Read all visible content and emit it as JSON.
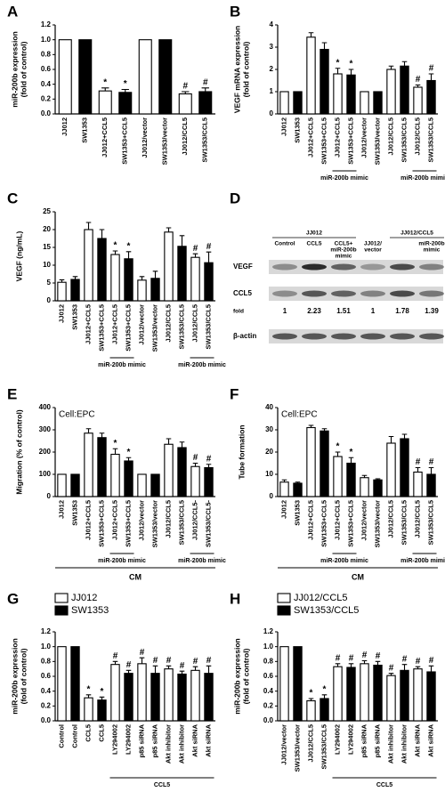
{
  "chart_data": [
    {
      "type": "bar",
      "panel": "A",
      "ylabel": [
        "miR-200b expression",
        "(fold of control)"
      ],
      "categories": [
        "JJ012",
        "SW1353",
        "JJ012+CCL5",
        "SW1353+CCL5",
        "JJ012/vector",
        "SW1353/vector",
        "JJ012/CCL5",
        "SW1353/CCL5"
      ],
      "values": [
        1,
        1,
        0.31,
        0.29,
        1,
        1,
        0.27,
        0.3
      ],
      "errors": [
        null,
        null,
        0.04,
        0.04,
        null,
        null,
        0.03,
        0.05
      ],
      "markers": [
        null,
        null,
        "*",
        "*",
        null,
        null,
        "#",
        "#"
      ],
      "colors": [
        "#ffffff",
        "#000000",
        "#ffffff",
        "#000000",
        "#ffffff",
        "#000000",
        "#ffffff",
        "#000000"
      ],
      "ylim": [
        0,
        1.2
      ],
      "yticks": [
        {
          "value": 0,
          "label": "0.0"
        },
        0.2,
        0.4,
        0.6,
        0.8,
        {
          "value": 1,
          "label": "1.0"
        },
        1.2
      ]
    },
    {
      "type": "bar",
      "panel": "B",
      "ylabel": [
        "VEGF mRNA expression",
        "(fold of control)"
      ],
      "categories": [
        "JJ012",
        "SW1353",
        "JJ012+CCL5",
        "SW1353+CCL5",
        "JJ012+CCL5",
        "SW1353+CCL5",
        "JJ012/vector",
        "SW1353/vector",
        "JJ012/CCL5",
        "SW1353/CCL5",
        "JJ012/CCL5",
        "SW1353/CCL5"
      ],
      "values": [
        1,
        1,
        3.45,
        2.9,
        1.8,
        1.75,
        1,
        1,
        2.0,
        2.15,
        1.2,
        1.5
      ],
      "errors": [
        null,
        null,
        0.2,
        0.3,
        0.25,
        0.25,
        null,
        null,
        0.15,
        0.2,
        0.1,
        0.3
      ],
      "markers": [
        null,
        null,
        null,
        null,
        "*",
        "*",
        null,
        null,
        null,
        null,
        "#",
        "#"
      ],
      "colors": [
        "#ffffff",
        "#000000",
        "#ffffff",
        "#000000",
        "#ffffff",
        "#000000",
        "#ffffff",
        "#000000",
        "#ffffff",
        "#000000",
        "#ffffff",
        "#000000"
      ],
      "brackets": [
        {
          "text": "miR-200b mimic",
          "first": 4,
          "last": 5
        },
        {
          "text": "miR-200b mimic",
          "first": 10,
          "last": 11
        }
      ],
      "ylim": [
        0,
        4
      ],
      "yticks": [
        0,
        1,
        2,
        3,
        4
      ]
    },
    {
      "type": "bar",
      "panel": "C",
      "ylabel": [
        "VEGF (ng/mL)"
      ],
      "categories": [
        "JJ012",
        "SW1353",
        "JJ012+CCL5",
        "SW1353+CCL5",
        "JJ012+CCL5",
        "SW1353+CCL5",
        "JJ012/vector",
        "SW1353/vector",
        "JJ012/CCL5",
        "SW1353/CCL5",
        "JJ012/CCL5",
        "SW1353/CCL5"
      ],
      "values": [
        5.2,
        6,
        20,
        17.5,
        13,
        11.8,
        5.8,
        6.3,
        19.3,
        15.3,
        12.2,
        10.7
      ],
      "errors": [
        0.7,
        0.8,
        2,
        2.5,
        1,
        2,
        1,
        2,
        1.2,
        3,
        1,
        3
      ],
      "markers": [
        null,
        null,
        null,
        null,
        "*",
        "*",
        null,
        null,
        null,
        null,
        "#",
        "#"
      ],
      "colors": [
        "#ffffff",
        "#000000",
        "#ffffff",
        "#000000",
        "#ffffff",
        "#000000",
        "#ffffff",
        "#000000",
        "#ffffff",
        "#000000",
        "#ffffff",
        "#000000"
      ],
      "brackets": [
        {
          "text": "miR-200b mimic",
          "first": 4,
          "last": 5
        },
        {
          "text": "miR-200b mimic",
          "first": 10,
          "last": 11
        }
      ],
      "ylim": [
        0,
        25
      ],
      "yticks": [
        0,
        5,
        10,
        15,
        20,
        25
      ]
    },
    {
      "type": "blot",
      "panel": "D",
      "groups": [
        {
          "name": "JJ012",
          "first": 0,
          "last": 2
        },
        {
          "name": "JJ012/CCL5",
          "first": 4,
          "last": 5
        }
      ],
      "columns": [
        [
          "Control"
        ],
        [
          "CCL5"
        ],
        [
          "CCL5+",
          "miR-200b",
          "mimic"
        ],
        [
          "JJ012/",
          "vector"
        ],
        null,
        [
          "miR-200b",
          "mimic"
        ]
      ],
      "rows": [
        "VEGF",
        "CCL5",
        "β-actin"
      ],
      "fold_label": "fold",
      "fold": [
        1,
        2.23,
        1.51,
        1,
        1.78,
        1.39
      ]
    },
    {
      "type": "bar",
      "panel": "E",
      "ylabel": [
        "Migration (% of control)"
      ],
      "note": "Cell:EPC",
      "categories": [
        "JJ012",
        "SW1353",
        "JJ012+CCL5",
        "SW1353+CCL5",
        "JJ012+CCL5",
        "SW1353+CCL5",
        "JJ012/vector",
        "SW1353/vector",
        "JJ012/CCL5",
        "SW1353/CCL5",
        "JJ012/CCL5-",
        "SW1353/CCL5-"
      ],
      "values": [
        100,
        100,
        285,
        265,
        190,
        160,
        100,
        100,
        235,
        220,
        135,
        130
      ],
      "errors": [
        null,
        null,
        20,
        20,
        25,
        15,
        null,
        null,
        25,
        25,
        15,
        15
      ],
      "markers": [
        null,
        null,
        null,
        null,
        "*",
        "*",
        null,
        null,
        null,
        null,
        "#",
        "#"
      ],
      "colors": [
        "#ffffff",
        "#000000",
        "#ffffff",
        "#000000",
        "#ffffff",
        "#000000",
        "#ffffff",
        "#000000",
        "#ffffff",
        "#000000",
        "#ffffff",
        "#000000"
      ],
      "brackets": [
        {
          "text": "miR-200b mimic",
          "first": 4,
          "last": 5
        },
        {
          "text": "miR-200b mimic",
          "first": 10,
          "last": 11
        }
      ],
      "footer": "CM",
      "ylim": [
        0,
        400
      ],
      "yticks": [
        0,
        100,
        200,
        300,
        400
      ]
    },
    {
      "type": "bar",
      "panel": "F",
      "ylabel": [
        "Tube formation"
      ],
      "note": "Cell:EPC",
      "categories": [
        "JJ012",
        "SW1353",
        "JJ012+CCL5",
        "SW1353+CCL5",
        "JJ012+CCL5",
        "SW1353+CCL5",
        "JJ012/vector",
        "SW1353/vector",
        "JJ012/CCL5",
        "SW1353/CCL5",
        "JJ012/CCL5",
        "SW1353/CCL5"
      ],
      "values": [
        6.5,
        6,
        31,
        29.5,
        18,
        15,
        8.5,
        7.5,
        24,
        26,
        11,
        10
      ],
      "errors": [
        1,
        0.5,
        1,
        1,
        2,
        2.5,
        1,
        0.5,
        3,
        2,
        2,
        3
      ],
      "markers": [
        null,
        null,
        null,
        null,
        "*",
        "*",
        null,
        null,
        null,
        null,
        "#",
        "#"
      ],
      "colors": [
        "#ffffff",
        "#000000",
        "#ffffff",
        "#000000",
        "#ffffff",
        "#000000",
        "#ffffff",
        "#000000",
        "#ffffff",
        "#000000",
        "#ffffff",
        "#000000"
      ],
      "brackets": [
        {
          "text": "miR-200b mimic",
          "first": 4,
          "last": 5
        },
        {
          "text": "miR-200b mimic",
          "first": 10,
          "last": 11
        }
      ],
      "footer": "CM",
      "ylim": [
        0,
        40
      ],
      "yticks": [
        0,
        10,
        20,
        30,
        40
      ]
    },
    {
      "type": "bar",
      "panel": "G",
      "ylabel": [
        "miR-200b expression",
        "(fold of control)"
      ],
      "legend": [
        {
          "name": "JJ012",
          "color": "#ffffff"
        },
        {
          "name": "SW1353",
          "color": "#000000"
        }
      ],
      "categories": [
        "Control",
        "Control",
        "CCL5",
        "CCL5",
        "LY294002",
        "LY294002",
        "p85 siRNA",
        "p85 siRNA",
        "Akt inhibitor",
        "Akt inhibitor",
        "Akt siRNA",
        "Akt siRNA"
      ],
      "values": [
        1,
        1,
        0.31,
        0.28,
        0.76,
        0.64,
        0.77,
        0.64,
        0.7,
        0.63,
        0.68,
        0.64
      ],
      "errors": [
        null,
        null,
        0.04,
        0.04,
        0.04,
        0.04,
        0.08,
        0.1,
        0.04,
        0.04,
        0.05,
        0.1
      ],
      "markers": [
        null,
        null,
        "*",
        "*",
        "#",
        "#",
        "#",
        "#",
        "#",
        "#",
        "#",
        "#"
      ],
      "colors": [
        "#ffffff",
        "#000000",
        "#ffffff",
        "#000000",
        "#ffffff",
        "#000000",
        "#ffffff",
        "#000000",
        "#ffffff",
        "#000000",
        "#ffffff",
        "#000000"
      ],
      "brackets": [
        {
          "text": "CCL5",
          "first": 4,
          "last": 11
        }
      ],
      "ylim": [
        0,
        1.2
      ],
      "yticks": [
        {
          "value": 0,
          "label": "0.0"
        },
        0.2,
        0.4,
        0.6,
        0.8,
        {
          "value": 1,
          "label": "1.0"
        },
        1.2
      ]
    },
    {
      "type": "bar",
      "panel": "H",
      "ylabel": [
        "miR-200b expression",
        "(fold of control)"
      ],
      "legend": [
        {
          "name": "JJ012/CCL5",
          "color": "#ffffff"
        },
        {
          "name": "SW1353/CCL5",
          "color": "#000000"
        }
      ],
      "categories": [
        "JJ012/vector",
        "SW1353/vector",
        "JJ012/CCL5",
        "SW1353/CCL5",
        "LY294002",
        "LY294002",
        "p85 siRNA",
        "p85 siRNA",
        "Akt inhibitor",
        "Akt inhibitor",
        "Akt siRNA",
        "Akt siRNA"
      ],
      "values": [
        1,
        1,
        0.27,
        0.3,
        0.73,
        0.72,
        0.77,
        0.75,
        0.61,
        0.68,
        0.7,
        0.66
      ],
      "errors": [
        null,
        null,
        0.03,
        0.05,
        0.04,
        0.05,
        0.04,
        0.05,
        0.03,
        0.08,
        0.03,
        0.08
      ],
      "markers": [
        null,
        null,
        "*",
        "*",
        "#",
        "#",
        "#",
        "#",
        "#",
        "#",
        "#",
        "#"
      ],
      "colors": [
        "#ffffff",
        "#000000",
        "#ffffff",
        "#000000",
        "#ffffff",
        "#000000",
        "#ffffff",
        "#000000",
        "#ffffff",
        "#000000",
        "#ffffff",
        "#000000"
      ],
      "brackets": [
        {
          "text": "CCL5",
          "first": 4,
          "last": 11
        }
      ],
      "ylim": [
        0,
        1.2
      ],
      "yticks": [
        {
          "value": 0,
          "label": "0.0"
        },
        0.2,
        0.4,
        0.6,
        0.8,
        {
          "value": 1,
          "label": "1.0"
        },
        1.2
      ]
    }
  ]
}
